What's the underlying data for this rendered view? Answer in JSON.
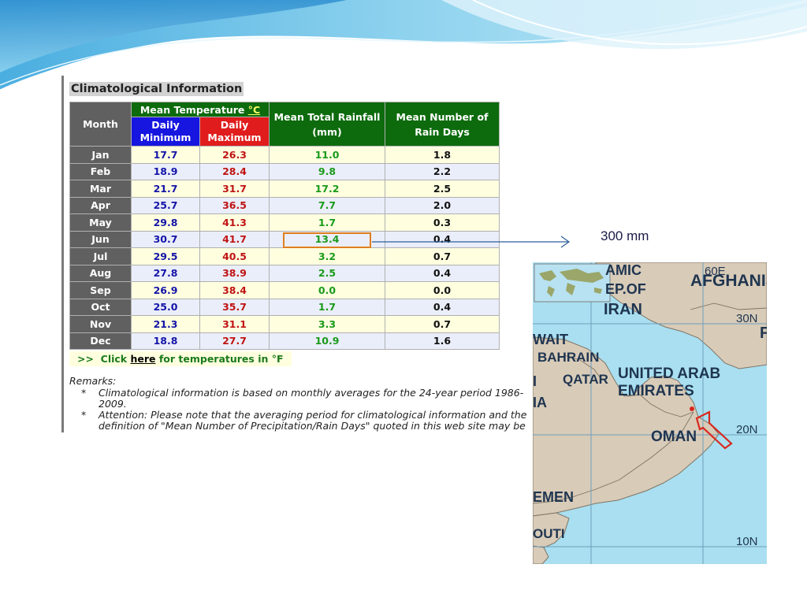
{
  "table": {
    "title": "Climatological Information",
    "headers": {
      "month": "Month",
      "mean_temp_prefix": "Mean Temperature ",
      "mean_temp_unit": "°C",
      "daily_min": "Daily Minimum",
      "daily_max": "Daily Maximum",
      "rainfall": "Mean Total Rainfall (mm)",
      "rain_days": "Mean Number of Rain Days"
    },
    "rows": [
      {
        "month": "Jan",
        "min": "17.7",
        "max": "26.3",
        "rain": "11.0",
        "days": "1.8"
      },
      {
        "month": "Feb",
        "min": "18.9",
        "max": "28.4",
        "rain": "9.8",
        "days": "2.2"
      },
      {
        "month": "Mar",
        "min": "21.7",
        "max": "31.7",
        "rain": "17.2",
        "days": "2.5"
      },
      {
        "month": "Apr",
        "min": "25.7",
        "max": "36.5",
        "rain": "7.7",
        "days": "2.0"
      },
      {
        "month": "May",
        "min": "29.8",
        "max": "41.3",
        "rain": "1.7",
        "days": "0.3"
      },
      {
        "month": "Jun",
        "min": "30.7",
        "max": "41.7",
        "rain": "13.4",
        "days": "0.4"
      },
      {
        "month": "Jul",
        "min": "29.5",
        "max": "40.5",
        "rain": "3.2",
        "days": "0.7"
      },
      {
        "month": "Aug",
        "min": "27.8",
        "max": "38.9",
        "rain": "2.5",
        "days": "0.4"
      },
      {
        "month": "Sep",
        "min": "26.9",
        "max": "38.4",
        "rain": "0.0",
        "days": "0.0"
      },
      {
        "month": "Oct",
        "min": "25.0",
        "max": "35.7",
        "rain": "1.7",
        "days": "0.4"
      },
      {
        "month": "Nov",
        "min": "21.3",
        "max": "31.1",
        "rain": "3.3",
        "days": "0.7"
      },
      {
        "month": "Dec",
        "min": "18.8",
        "max": "27.7",
        "rain": "10.9",
        "days": "1.6"
      }
    ],
    "highlighted_row": "Jun"
  },
  "link_line": {
    "prefix": ">>  Click ",
    "link": "here",
    "suffix": " for temperatures in °F"
  },
  "remarks": {
    "heading": "Remarks:",
    "bullet": "*",
    "item1": "Climatological information is based on monthly averages for the 24-year period 1986-2009.",
    "item2a": "Attention: Please note that the averaging period for climatological information and the",
    "item2b": "definition of \"Mean Number of Precipitation/Rain Days\" quoted in this web site may be"
  },
  "annotation": {
    "label": "300 mm",
    "arrow_color": "#2e5d9a",
    "highlight_color": "#e07f1e"
  },
  "map": {
    "labels": {
      "iran_1": "AMIC",
      "iran_2": "EP.OF",
      "iran_3": "IRAN",
      "afghanistan": "AFGHANIS",
      "kuwait": "WAIT",
      "bahrain": "BAHRAIN",
      "qatar": "QATAR",
      "uae_1": "UNITED ARAB",
      "uae_2": "EMIRATES",
      "saudi_1": "I",
      "saudi_2": "IA",
      "oman": "OMAN",
      "yemen": "EMEN",
      "djibouti": "OUTI",
      "lon_60e": "60E",
      "lat_30n": "30N",
      "lat_20n": "20N",
      "lat_10n": "10N",
      "pak_p": "F"
    },
    "colors": {
      "sea": "#a9dff0",
      "land": "#d8cbb8",
      "grid": "#6f9fbd",
      "marker": "#d8281e"
    }
  }
}
